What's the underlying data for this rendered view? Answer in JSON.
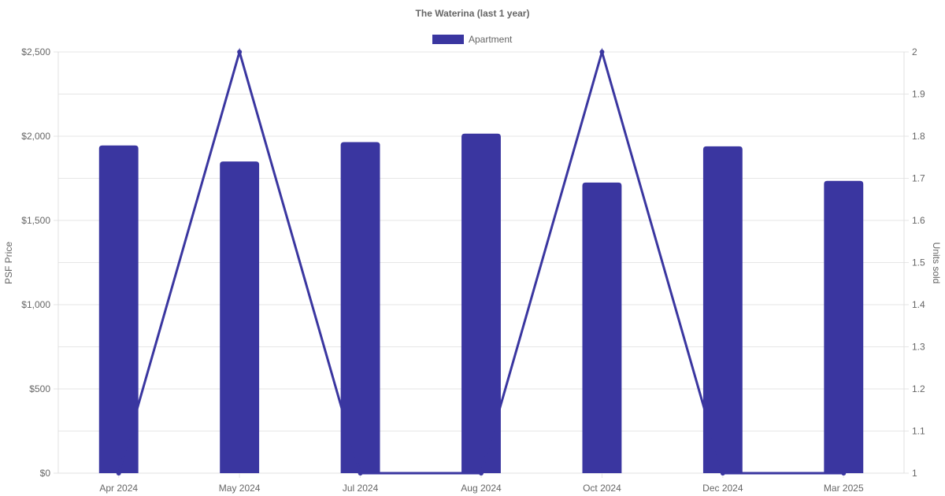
{
  "chart_data": {
    "type": "bar",
    "title": "The Waterina (last 1 year)",
    "categories": [
      "Apr 2024",
      "May 2024",
      "Jul 2024",
      "Aug 2024",
      "Oct 2024",
      "Dec 2024",
      "Mar 2025"
    ],
    "series": [
      {
        "name": "Apartment",
        "type": "bar",
        "axis": "left",
        "color": "#3a36a0",
        "values": [
          1945,
          1850,
          1965,
          2015,
          1725,
          1940,
          1735
        ]
      },
      {
        "type": "line",
        "axis": "right",
        "color": "#3a36a0",
        "values": [
          1,
          2,
          1,
          1,
          2,
          1,
          1
        ]
      }
    ],
    "y_left": {
      "label": "PSF Price",
      "range": [
        0,
        2500
      ],
      "ticks": [
        0,
        500,
        1000,
        1500,
        2000,
        2500
      ],
      "tick_labels": [
        "$0",
        "$500",
        "$1,000",
        "$1,500",
        "$2,000",
        "$2,500"
      ]
    },
    "y_right": {
      "label": "Units sold",
      "range": [
        1,
        2
      ],
      "ticks": [
        1,
        1.1,
        1.2,
        1.3,
        1.4,
        1.5,
        1.6,
        1.7,
        1.8,
        1.9,
        2
      ],
      "tick_labels": [
        "1",
        "1.1",
        "1.2",
        "1.3",
        "1.4",
        "1.5",
        "1.6",
        "1.7",
        "1.8",
        "1.9",
        "2"
      ]
    },
    "grid": true,
    "legend": "top-center"
  }
}
